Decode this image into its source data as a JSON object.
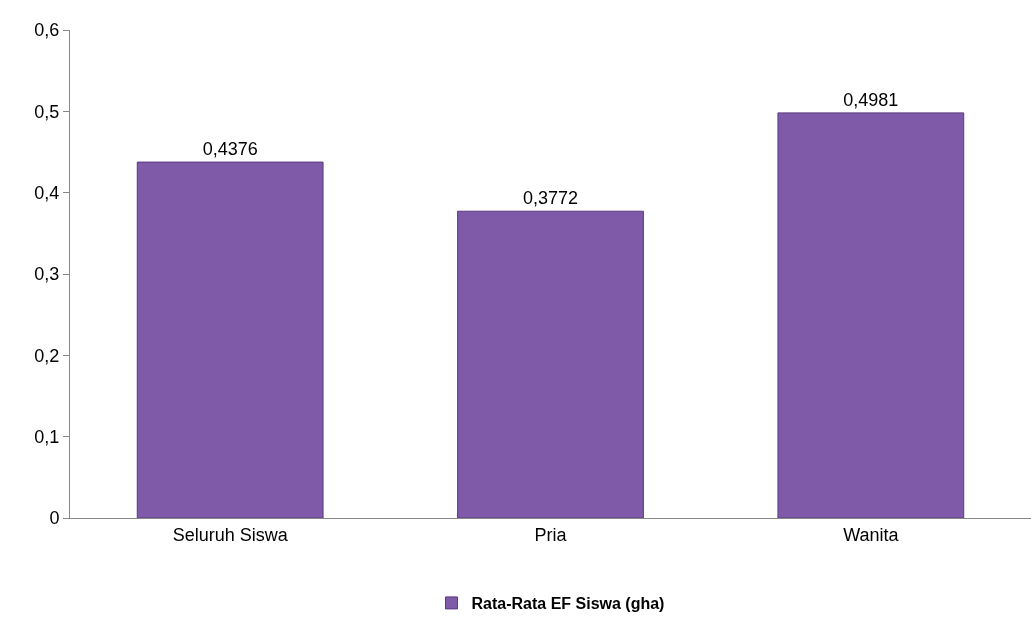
{
  "chart_data": {
    "type": "bar",
    "categories": [
      "Seluruh Siswa",
      "Pria",
      "Wanita"
    ],
    "series": [
      {
        "name": "Rata-Rata EF Siswa (gha)",
        "color": "#7f5aa8",
        "values": [
          0.4376,
          0.3772,
          0.4981
        ],
        "value_labels": [
          "0,4376",
          "0,3772",
          "0,4981"
        ]
      }
    ],
    "ylim": [
      0,
      0.6
    ],
    "yticks": [
      0,
      {
        "value": 0.1,
        "label": "0,1"
      },
      {
        "value": 0.2,
        "label": "0,2"
      },
      {
        "value": 0.3,
        "label": "0,3"
      },
      {
        "value": 0.4,
        "label": "0,4"
      },
      {
        "value": 0.5,
        "label": "0,5"
      },
      {
        "value": 0.6,
        "label": "0,6"
      }
    ],
    "legend": "bottom"
  }
}
